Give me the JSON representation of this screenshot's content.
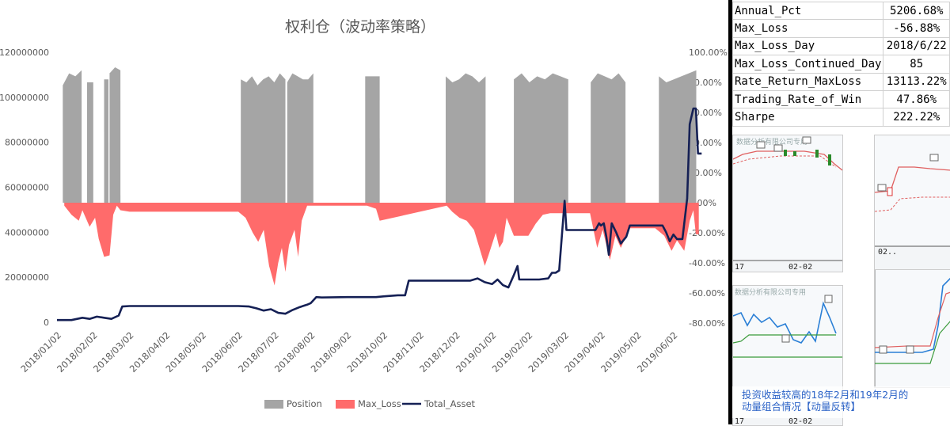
{
  "chart_data": {
    "type": "area",
    "title": "权利仓（波动率策略）",
    "categories": [
      "2018/01/02",
      "2018/02/02",
      "2018/03/02",
      "2018/04/02",
      "2018/05/02",
      "2018/06/02",
      "2018/07/02",
      "2018/08/02",
      "2018/09/02",
      "2018/10/02",
      "2018/11/02",
      "2018/12/02",
      "2019/01/02",
      "2019/02/02",
      "2019/03/02",
      "2019/04/02",
      "2019/05/02",
      "2019/06/02"
    ],
    "left_axis": {
      "min": 0,
      "max": 120000000,
      "ticks": [
        "120000000",
        "100000000",
        "80000000",
        "60000000",
        "40000000",
        "20000000",
        "0"
      ]
    },
    "right_axis": {
      "min": -0.8,
      "max": 1.0,
      "ticks": [
        "100.00%",
        "80.00%",
        "60.00%",
        "40.00%",
        "20.00%",
        "0.00%",
        "-20.00%",
        "-40.00%",
        "-60.00%",
        "-80.00%"
      ]
    },
    "series": [
      {
        "name": "Position",
        "axis": "right",
        "color": "#a5a5a5",
        "blocks": [
          {
            "start": 0.16,
            "end": 0.68,
            "values": [
              0.78,
              0.86,
              0.84,
              0.88
            ]
          },
          {
            "start": 0.83,
            "end": 1.0,
            "values": [
              0.8,
              0.8
            ]
          },
          {
            "start": 1.3,
            "end": 1.42,
            "values": [
              0.82,
              0.82
            ]
          },
          {
            "start": 1.45,
            "end": 1.75,
            "values": [
              0.86,
              0.9,
              0.88
            ]
          },
          {
            "start": 5.07,
            "end": 6.3,
            "values": [
              0.82,
              0.8,
              0.84,
              0.78,
              0.82,
              0.84,
              0.8,
              0.86,
              0.82
            ]
          },
          {
            "start": 6.35,
            "end": 7.07,
            "values": [
              0.8,
              0.86,
              0.84,
              0.82,
              0.82,
              0.86
            ]
          },
          {
            "start": 8.5,
            "end": 8.9,
            "values": [
              0.84,
              0.84
            ]
          },
          {
            "start": 10.72,
            "end": 11.82,
            "values": [
              0.84,
              0.8,
              0.82,
              0.86,
              0.84,
              0.8,
              0.84
            ]
          },
          {
            "start": 12.6,
            "end": 14.1,
            "values": [
              0.82,
              0.86,
              0.8,
              0.84,
              0.82,
              0.86,
              0.84,
              0.82
            ]
          },
          {
            "start": 14.72,
            "end": 15.68,
            "values": [
              0.8,
              0.86,
              0.84,
              0.82,
              0.86,
              0.8
            ]
          },
          {
            "start": 16.6,
            "end": 17.63,
            "values": [
              0.84,
              0.8,
              0.82,
              0.84,
              0.86,
              0.88
            ]
          }
        ]
      },
      {
        "name": "Max_Loss",
        "axis": "right",
        "color": "#ff6b6b",
        "points": [
          [
            0.2,
            -0.02
          ],
          [
            0.4,
            -0.08
          ],
          [
            0.6,
            -0.12
          ],
          [
            0.7,
            -0.05
          ],
          [
            0.9,
            -0.16
          ],
          [
            1.05,
            -0.1
          ],
          [
            1.15,
            -0.24
          ],
          [
            1.3,
            -0.36
          ],
          [
            1.45,
            -0.35
          ],
          [
            1.55,
            -0.08
          ],
          [
            1.65,
            -0.02
          ],
          [
            1.75,
            -0.05
          ],
          [
            2.0,
            -0.06
          ],
          [
            3.0,
            -0.06
          ],
          [
            4.0,
            -0.06
          ],
          [
            5.0,
            -0.06
          ],
          [
            5.2,
            -0.1
          ],
          [
            5.4,
            -0.2
          ],
          [
            5.55,
            -0.26
          ],
          [
            5.7,
            -0.18
          ],
          [
            5.85,
            -0.42
          ],
          [
            6.0,
            -0.55
          ],
          [
            6.1,
            -0.4
          ],
          [
            6.2,
            -0.3
          ],
          [
            6.3,
            -0.46
          ],
          [
            6.4,
            -0.28
          ],
          [
            6.55,
            -0.18
          ],
          [
            6.65,
            -0.36
          ],
          [
            6.75,
            -0.12
          ],
          [
            6.9,
            -0.02
          ],
          [
            8.55,
            -0.02
          ],
          [
            8.8,
            -0.04
          ],
          [
            8.9,
            -0.12
          ],
          [
            10.75,
            -0.02
          ],
          [
            10.9,
            -0.06
          ],
          [
            11.1,
            -0.1
          ],
          [
            11.3,
            -0.12
          ],
          [
            11.5,
            -0.18
          ],
          [
            11.65,
            -0.3
          ],
          [
            11.8,
            -0.42
          ],
          [
            11.9,
            -0.35
          ],
          [
            12.1,
            -0.2
          ],
          [
            12.2,
            -0.3
          ],
          [
            12.3,
            -0.26
          ],
          [
            12.4,
            -0.1
          ],
          [
            12.6,
            -0.22
          ],
          [
            13.0,
            -0.22
          ],
          [
            13.2,
            -0.14
          ],
          [
            13.4,
            -0.08
          ],
          [
            13.6,
            -0.07
          ],
          [
            14.0,
            -0.07
          ],
          [
            14.2,
            -0.07
          ],
          [
            14.5,
            -0.07
          ],
          [
            14.7,
            -0.07
          ],
          [
            14.9,
            -0.3
          ],
          [
            15.05,
            -0.18
          ],
          [
            15.25,
            -0.38
          ],
          [
            15.4,
            -0.22
          ],
          [
            15.55,
            -0.3
          ],
          [
            15.8,
            -0.17
          ],
          [
            16.2,
            -0.17
          ],
          [
            16.5,
            -0.17
          ],
          [
            16.75,
            -0.22
          ],
          [
            16.95,
            -0.32
          ],
          [
            17.1,
            -0.25
          ],
          [
            17.3,
            -0.32
          ],
          [
            17.45,
            -0.12
          ],
          [
            17.55,
            -0.05
          ],
          [
            17.62,
            -0.21
          ],
          [
            17.7,
            -0.21
          ]
        ]
      },
      {
        "name": "Total_Asset",
        "axis": "left",
        "color": "#152055",
        "points": [
          [
            0.0,
            1000000
          ],
          [
            0.4,
            1000000
          ],
          [
            0.7,
            2000000
          ],
          [
            0.9,
            1500000
          ],
          [
            1.1,
            2500000
          ],
          [
            1.3,
            2000000
          ],
          [
            1.5,
            1500000
          ],
          [
            1.7,
            3000000
          ],
          [
            1.8,
            7000000
          ],
          [
            2.0,
            7200000
          ],
          [
            3.0,
            7200000
          ],
          [
            4.0,
            7200000
          ],
          [
            5.0,
            7200000
          ],
          [
            5.3,
            7000000
          ],
          [
            5.5,
            6200000
          ],
          [
            5.7,
            5200000
          ],
          [
            5.9,
            5800000
          ],
          [
            6.1,
            4200000
          ],
          [
            6.3,
            3800000
          ],
          [
            6.5,
            5500000
          ],
          [
            6.7,
            6800000
          ],
          [
            6.9,
            7800000
          ],
          [
            7.0,
            8500000
          ],
          [
            7.15,
            11200000
          ],
          [
            7.3,
            11000000
          ],
          [
            8.0,
            11200000
          ],
          [
            8.8,
            11200000
          ],
          [
            9.0,
            11500000
          ],
          [
            9.4,
            12000000
          ],
          [
            9.6,
            12000000
          ],
          [
            9.7,
            18500000
          ],
          [
            10.0,
            18500000
          ],
          [
            10.5,
            18500000
          ],
          [
            11.0,
            18500000
          ],
          [
            11.4,
            18500000
          ],
          [
            11.6,
            19500000
          ],
          [
            11.8,
            17800000
          ],
          [
            12.0,
            17000000
          ],
          [
            12.15,
            19000000
          ],
          [
            12.3,
            16500000
          ],
          [
            12.45,
            15500000
          ],
          [
            12.6,
            21000000
          ],
          [
            12.7,
            25000000
          ],
          [
            12.75,
            19000000
          ],
          [
            13.0,
            19000000
          ],
          [
            13.3,
            19000000
          ],
          [
            13.55,
            19500000
          ],
          [
            13.65,
            22000000
          ],
          [
            13.75,
            22000000
          ],
          [
            13.85,
            23000000
          ],
          [
            14.0,
            54000000
          ],
          [
            14.05,
            41000000
          ],
          [
            14.2,
            41000000
          ],
          [
            14.5,
            41000000
          ],
          [
            14.85,
            41000000
          ],
          [
            14.95,
            44000000
          ],
          [
            15.0,
            43000000
          ],
          [
            15.08,
            44000000
          ],
          [
            15.15,
            38000000
          ],
          [
            15.22,
            30000000
          ],
          [
            15.3,
            44000000
          ],
          [
            15.42,
            40000000
          ],
          [
            15.55,
            35000000
          ],
          [
            15.7,
            38000000
          ],
          [
            15.8,
            43000000
          ],
          [
            16.0,
            43000000
          ],
          [
            16.3,
            43000000
          ],
          [
            16.7,
            43000000
          ],
          [
            16.8,
            40000000
          ],
          [
            16.9,
            36000000
          ],
          [
            17.0,
            39000000
          ],
          [
            17.1,
            37000000
          ],
          [
            17.25,
            37000000
          ],
          [
            17.38,
            55000000
          ],
          [
            17.45,
            88000000
          ],
          [
            17.55,
            95000000
          ],
          [
            17.62,
            95000000
          ],
          [
            17.68,
            75000000
          ],
          [
            17.78,
            75000000
          ]
        ]
      }
    ],
    "legend": [
      "Position",
      "Max_Loss",
      "Total_Asset"
    ],
    "legend_position": "bottom",
    "grid": false
  },
  "stats": [
    {
      "label": "Annual_Pct",
      "value": "5206.68%"
    },
    {
      "label": "Max_Loss",
      "value": "-56.88%"
    },
    {
      "label": "Max_Loss_Day",
      "value": "2018/6/22"
    },
    {
      "label": "Max_Loss_Continued_Day",
      "value": "85"
    },
    {
      "label": "Rate_Return_MaxLoss",
      "value": "13113.22%"
    },
    {
      "label": "Trading_Rate_of_Win",
      "value": "47.86%"
    },
    {
      "label": "Sharpe",
      "value": "222.22%"
    }
  ],
  "thumbs": {
    "t1_axis": "17",
    "t1_axis2": "02-02",
    "t2_axis": "02..",
    "t3_axis": "17",
    "t3_axis2": "02-02",
    "t3_watermark": "数据分析有限公司专用",
    "t1_watermark": "数据分析有限公司专用"
  },
  "note": {
    "line1": "投资收益较高的18年2月和19年2月的",
    "line2": "动量组合情况【动量反转】"
  }
}
